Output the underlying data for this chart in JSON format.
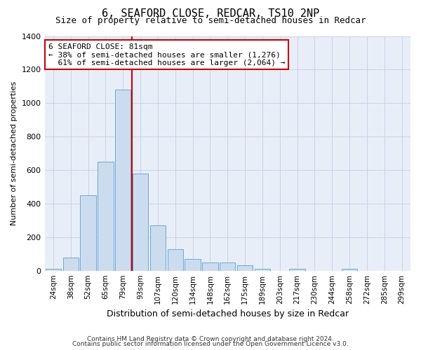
{
  "title": "6, SEAFORD CLOSE, REDCAR, TS10 2NP",
  "subtitle": "Size of property relative to semi-detached houses in Redcar",
  "xlabel": "Distribution of semi-detached houses by size in Redcar",
  "ylabel": "Number of semi-detached properties",
  "footer1": "Contains HM Land Registry data © Crown copyright and database right 2024.",
  "footer2": "Contains public sector information licensed under the Open Government Licence v3.0.",
  "categories": [
    "24sqm",
    "38sqm",
    "52sqm",
    "65sqm",
    "79sqm",
    "93sqm",
    "107sqm",
    "120sqm",
    "134sqm",
    "148sqm",
    "162sqm",
    "175sqm",
    "189sqm",
    "203sqm",
    "217sqm",
    "230sqm",
    "244sqm",
    "258sqm",
    "272sqm",
    "285sqm",
    "299sqm"
  ],
  "values": [
    10,
    80,
    450,
    650,
    1080,
    580,
    270,
    130,
    70,
    50,
    50,
    30,
    10,
    0,
    10,
    0,
    0,
    10,
    0,
    0,
    0
  ],
  "bar_color": "#ccdcef",
  "bar_edge_color": "#6aaad4",
  "red_line_x": 4.5,
  "red_line_color": "#cc0000",
  "annotation_text1": "6 SEAFORD CLOSE: 81sqm",
  "annotation_text2": "← 38% of semi-detached houses are smaller (1,276)",
  "annotation_text3": "  61% of semi-detached houses are larger (2,064) →",
  "annotation_box_color": "#ffffff",
  "annotation_box_edge_color": "#cc0000",
  "ylim": [
    0,
    1400
  ],
  "yticks": [
    0,
    200,
    400,
    600,
    800,
    1000,
    1200,
    1400
  ],
  "grid_color": "#c8d4e8",
  "bg_color": "#e8eef8",
  "title_fontsize": 11,
  "subtitle_fontsize": 9,
  "xlabel_fontsize": 9,
  "ylabel_fontsize": 8,
  "tick_fontsize": 8,
  "xtick_fontsize": 7.5,
  "footer_fontsize": 6.5
}
